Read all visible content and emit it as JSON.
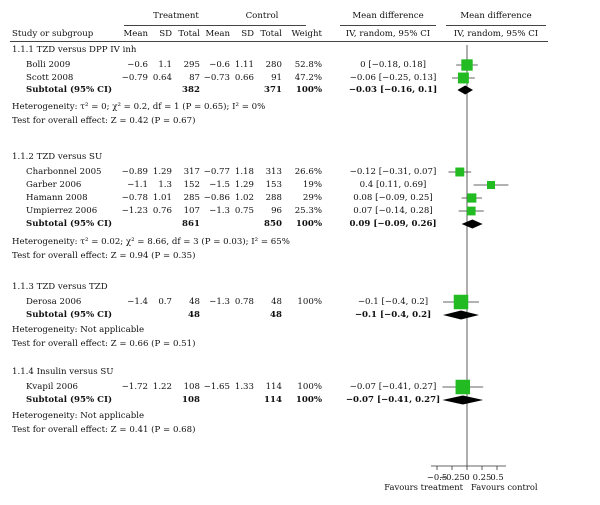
{
  "header": {
    "group_treatment": "Treatment",
    "group_control": "Control",
    "group_md": "Mean difference",
    "group_md_plot": "Mean difference",
    "col_study": "Study or subgroup",
    "col_mean_t": "Mean",
    "col_sd_t": "SD",
    "col_total_t": "Total",
    "col_mean_c": "Mean",
    "col_sd_c": "SD",
    "col_total_c": "Total",
    "col_weight": "Weight",
    "col_ci": "IV, random, 95% CI",
    "col_ci_plot": "IV, random, 95% CI"
  },
  "groups": [
    {
      "title": "1.1.1 TZD versus DPP IV inh",
      "studies": [
        {
          "name": "Bolli 2009",
          "mean_t": "−0.6",
          "sd_t": "1.1",
          "total_t": "295",
          "mean_c": "−0.6",
          "sd_c": "1.11",
          "total_c": "280",
          "weight": "52.8%",
          "ci_text": "0 [−0.18, 0.18]"
        },
        {
          "name": "Scott 2008",
          "mean_t": "−0.79",
          "sd_t": "0.64",
          "total_t": "87",
          "mean_c": "−0.73",
          "sd_c": "0.66",
          "total_c": "91",
          "weight": "47.2%",
          "ci_text": "−0.06 [−0.25, 0.13]"
        }
      ],
      "subtotal": {
        "label": "Subtotal (95% CI)",
        "total_t": "382",
        "total_c": "371",
        "weight": "100%",
        "ci_text": "−0.03 [−0.16, 0.1]"
      },
      "heterogeneity": "Heterogeneity: τ² = 0; χ² = 0.2, df = 1 (P = 0.65); I² = 0%",
      "overall": "Test for overall effect: Z = 0.42 (P = 0.67)"
    },
    {
      "title": "1.1.2 TZD versus SU",
      "studies": [
        {
          "name": "Charbonnel 2005",
          "mean_t": "−0.89",
          "sd_t": "1.29",
          "total_t": "317",
          "mean_c": "−0.77",
          "sd_c": "1.18",
          "total_c": "313",
          "weight": "26.6%",
          "ci_text": "−0.12 [−0.31, 0.07]"
        },
        {
          "name": "Garber 2006",
          "mean_t": "−1.1",
          "sd_t": "1.3",
          "total_t": "152",
          "mean_c": "−1.5",
          "sd_c": "1.29",
          "total_c": "153",
          "weight": "19%",
          "ci_text": "0.4 [0.11, 0.69]"
        },
        {
          "name": "Hamann 2008",
          "mean_t": "−0.78",
          "sd_t": "1.01",
          "total_t": "285",
          "mean_c": "−0.86",
          "sd_c": "1.02",
          "total_c": "288",
          "weight": "29%",
          "ci_text": "0.08 [−0.09, 0.25]"
        },
        {
          "name": "Umpierrez 2006",
          "mean_t": "−1.23",
          "sd_t": "0.76",
          "total_t": "107",
          "mean_c": "−1.3",
          "sd_c": "0.75",
          "total_c": "96",
          "weight": "25.3%",
          "ci_text": "0.07 [−0.14, 0.28]"
        }
      ],
      "subtotal": {
        "label": "Subtotal (95% CI)",
        "total_t": "861",
        "total_c": "850",
        "weight": "100%",
        "ci_text": "0.09 [−0.09, 0.26]"
      },
      "heterogeneity": "Heterogeneity: τ² = 0.02; χ² = 8.66, df = 3 (P = 0.03); I² = 65%",
      "overall": "Test for overall effect: Z = 0.94 (P = 0.35)"
    },
    {
      "title": "1.1.3 TZD versus TZD",
      "studies": [
        {
          "name": "Derosa 2006",
          "mean_t": "−1.4",
          "sd_t": "0.7",
          "total_t": "48",
          "mean_c": "−1.3",
          "sd_c": "0.78",
          "total_c": "48",
          "weight": "100%",
          "ci_text": "−0.1 [−0.4, 0.2]"
        }
      ],
      "subtotal": {
        "label": "Subtotal (95% CI)",
        "total_t": "48",
        "total_c": "48",
        "weight": "",
        "ci_text": "−0.1 [−0.4, 0.2]"
      },
      "heterogeneity": "Heterogeneity: Not applicable",
      "overall": "Test for overall effect: Z = 0.66 (P = 0.51)"
    },
    {
      "title": "1.1.4 Insulin versus SU",
      "studies": [
        {
          "name": "Kvapil 2006",
          "mean_t": "−1.72",
          "sd_t": "1.22",
          "total_t": "108",
          "mean_c": "−1.65",
          "sd_c": "1.33",
          "total_c": "114",
          "weight": "100%",
          "ci_text": "−0.07 [−0.41, 0.27]"
        }
      ],
      "subtotal": {
        "label": "Subtotal (95% CI)",
        "total_t": "108",
        "total_c": "114",
        "weight": "100%",
        "ci_text": "−0.07 [−0.41, 0.27]"
      },
      "heterogeneity": "Heterogeneity: Not applicable",
      "overall": "Test for overall effect: Z = 0.41 (P = 0.68)"
    }
  ],
  "chart_data": {
    "type": "forest",
    "xlim": [
      -0.6,
      0.65
    ],
    "ticks": [
      -0.5,
      -0.25,
      0,
      0.25,
      0.5
    ],
    "tick_labels": [
      "−0.5",
      "−0.25",
      "0",
      "0.25",
      "0.5"
    ],
    "favours_left": "Favours treatment",
    "favours_right": "Favours control",
    "study_color": "#22bb22",
    "summary_color": "#000000",
    "studies": [
      {
        "name": "Bolli 2009",
        "md": 0,
        "lo": -0.18,
        "hi": 0.18,
        "weight": 52.8
      },
      {
        "name": "Scott 2008",
        "md": -0.06,
        "lo": -0.25,
        "hi": 0.13,
        "weight": 47.2
      },
      {
        "name": "Charbonnel 2005",
        "md": -0.12,
        "lo": -0.31,
        "hi": 0.07,
        "weight": 26.6
      },
      {
        "name": "Garber 2006",
        "md": 0.4,
        "lo": 0.11,
        "hi": 0.69,
        "weight": 19
      },
      {
        "name": "Hamann 2008",
        "md": 0.08,
        "lo": -0.09,
        "hi": 0.25,
        "weight": 29
      },
      {
        "name": "Umpierrez 2006",
        "md": 0.07,
        "lo": -0.14,
        "hi": 0.28,
        "weight": 25.3
      },
      {
        "name": "Derosa 2006",
        "md": -0.1,
        "lo": -0.4,
        "hi": 0.2,
        "weight": 100
      },
      {
        "name": "Kvapil 2006",
        "md": -0.07,
        "lo": -0.41,
        "hi": 0.27,
        "weight": 100
      }
    ],
    "subtotals": [
      {
        "group": "1.1.1 TZD versus DPP IV inh",
        "md": -0.03,
        "lo": -0.16,
        "hi": 0.1
      },
      {
        "group": "1.1.2 TZD versus SU",
        "md": 0.09,
        "lo": -0.09,
        "hi": 0.26
      },
      {
        "group": "1.1.3 TZD versus TZD",
        "md": -0.1,
        "lo": -0.4,
        "hi": 0.2
      },
      {
        "group": "1.1.4 Insulin versus SU",
        "md": -0.07,
        "lo": -0.41,
        "hi": 0.27
      }
    ]
  }
}
